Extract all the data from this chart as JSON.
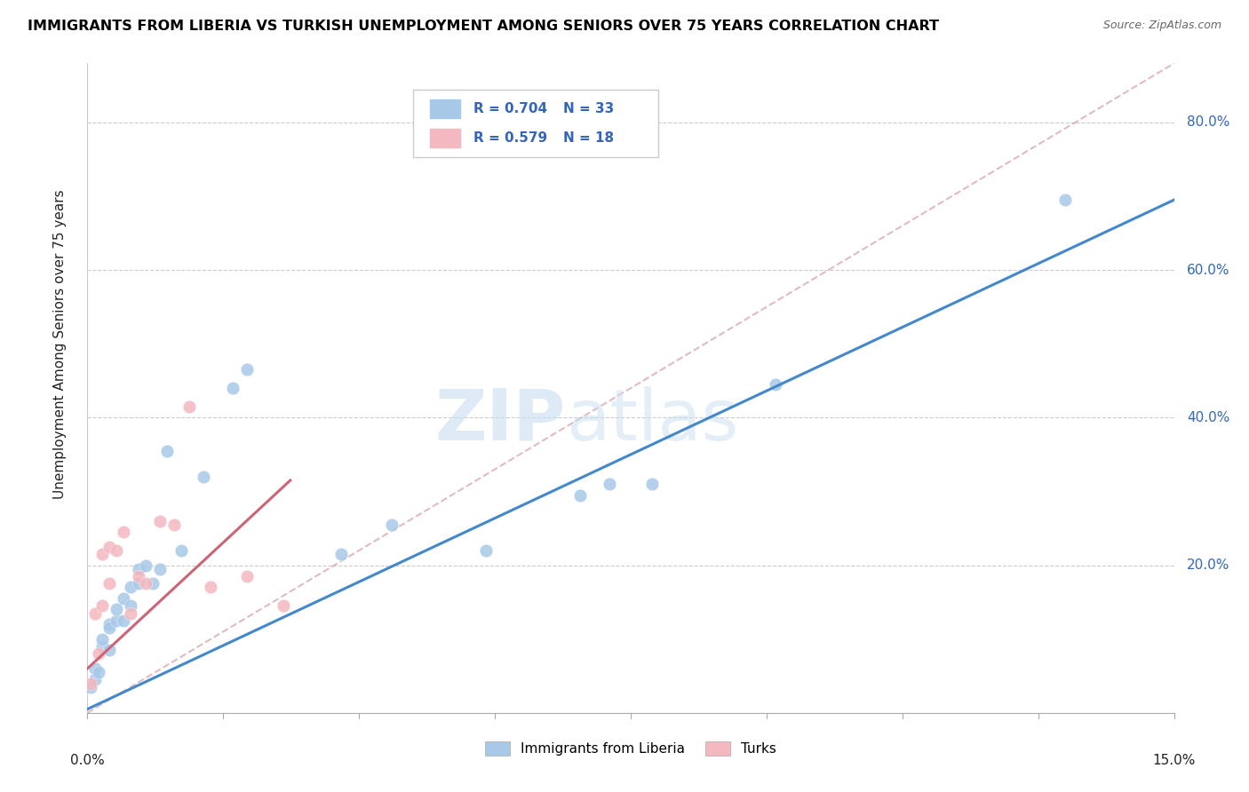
{
  "title": "IMMIGRANTS FROM LIBERIA VS TURKISH UNEMPLOYMENT AMONG SENIORS OVER 75 YEARS CORRELATION CHART",
  "source": "Source: ZipAtlas.com",
  "ylabel": "Unemployment Among Seniors over 75 years",
  "xlim": [
    0.0,
    0.15
  ],
  "ylim": [
    0.0,
    0.88
  ],
  "legend1_text": "R = 0.704",
  "legend1_n": "N = 33",
  "legend2_text": "R = 0.579",
  "legend2_n": "N = 18",
  "legend_bottom1": "Immigrants from Liberia",
  "legend_bottom2": "Turks",
  "blue_color": "#a8c8e8",
  "pink_color": "#f4b8c0",
  "blue_line_color": "#4488cc",
  "pink_line_color": "#cc6677",
  "text_blue": "#3366bb",
  "blue_scatter_x": [
    0.0005,
    0.001,
    0.001,
    0.0015,
    0.002,
    0.002,
    0.003,
    0.003,
    0.003,
    0.004,
    0.004,
    0.005,
    0.005,
    0.006,
    0.006,
    0.007,
    0.007,
    0.008,
    0.009,
    0.01,
    0.011,
    0.013,
    0.016,
    0.02,
    0.022,
    0.035,
    0.042,
    0.055,
    0.068,
    0.072,
    0.078,
    0.095,
    0.135
  ],
  "blue_scatter_y": [
    0.035,
    0.06,
    0.045,
    0.055,
    0.09,
    0.1,
    0.12,
    0.085,
    0.115,
    0.125,
    0.14,
    0.155,
    0.125,
    0.145,
    0.17,
    0.175,
    0.195,
    0.2,
    0.175,
    0.195,
    0.355,
    0.22,
    0.32,
    0.44,
    0.465,
    0.215,
    0.255,
    0.22,
    0.295,
    0.31,
    0.31,
    0.445,
    0.695
  ],
  "pink_scatter_x": [
    0.0005,
    0.001,
    0.0015,
    0.002,
    0.002,
    0.003,
    0.003,
    0.004,
    0.005,
    0.006,
    0.007,
    0.008,
    0.01,
    0.012,
    0.014,
    0.017,
    0.022,
    0.027
  ],
  "pink_scatter_y": [
    0.04,
    0.135,
    0.08,
    0.145,
    0.215,
    0.175,
    0.225,
    0.22,
    0.245,
    0.135,
    0.185,
    0.175,
    0.26,
    0.255,
    0.415,
    0.17,
    0.185,
    0.145
  ],
  "blue_line_x": [
    0.0,
    0.15
  ],
  "blue_line_y": [
    0.005,
    0.695
  ],
  "pink_line_x": [
    0.0,
    0.028
  ],
  "pink_line_y": [
    0.06,
    0.315
  ],
  "diag_line_x": [
    0.0,
    0.15
  ],
  "diag_line_y": [
    0.0,
    0.88
  ],
  "watermark_zip": "ZIP",
  "watermark_atlas": "atlas",
  "ytick_vals": [
    0.2,
    0.4,
    0.6,
    0.8
  ],
  "ytick_labels": [
    "20.0%",
    "40.0%",
    "60.0%",
    "80.0%"
  ]
}
